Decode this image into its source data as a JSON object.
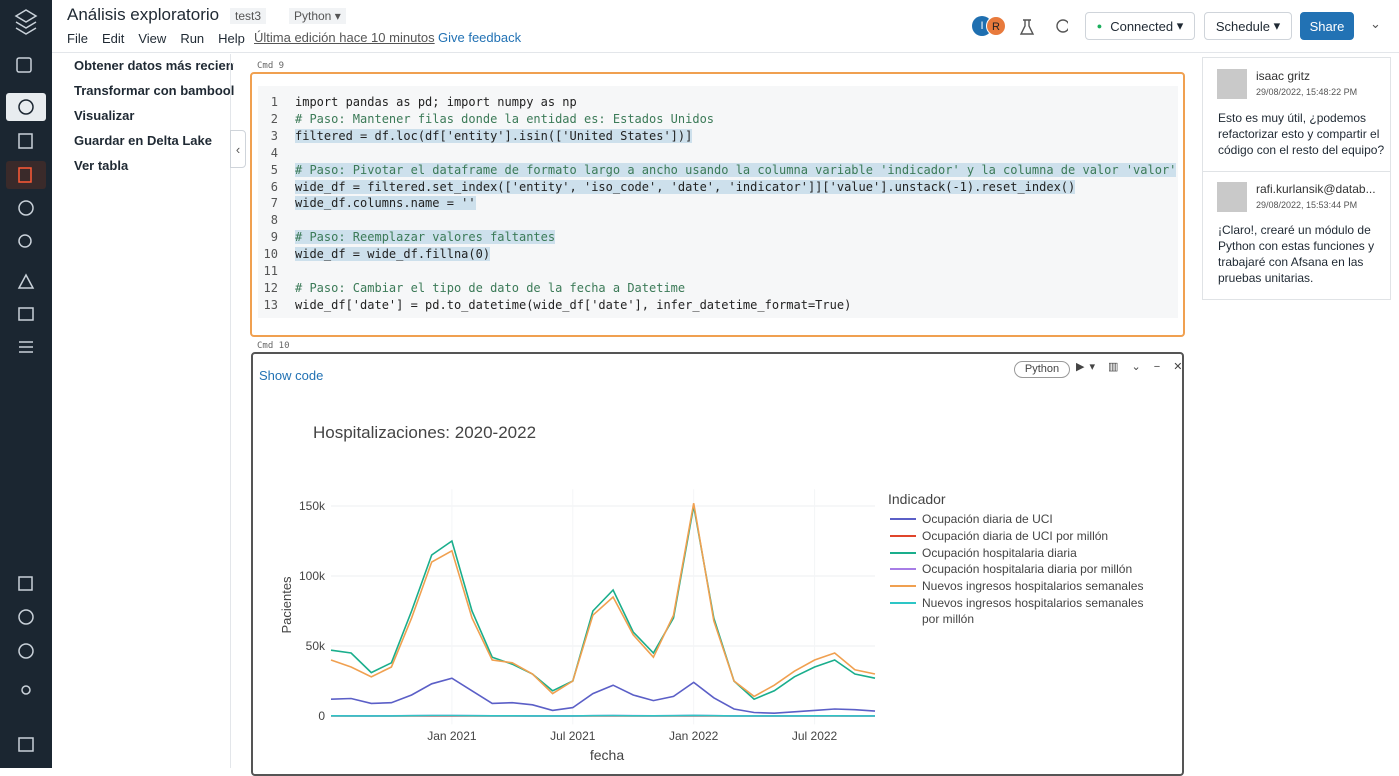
{
  "header": {
    "title": "Análisis exploratorio",
    "tag": "test3",
    "language": "Python",
    "menu": [
      "File",
      "Edit",
      "View",
      "Run",
      "Help"
    ],
    "last_edit": "Última edición hace 10 minutos",
    "feedback": "Give feedback",
    "avatars": [
      "I",
      "R"
    ],
    "connection": "Connected",
    "schedule": "Schedule",
    "share": "Share"
  },
  "outline": [
    "Obtener datos más reciente",
    "Transformar con bamboolib",
    "Visualizar",
    "Guardar en Delta Lake",
    "Ver tabla"
  ],
  "cells": [
    {
      "label": "Cmd 9",
      "lines": [
        {
          "n": 1,
          "text": "import pandas as pd; import numpy as np"
        },
        {
          "n": 2,
          "text": "# Paso: Mantener filas donde la entidad es: Estados Unidos"
        },
        {
          "n": 3,
          "text": "filtered = df.loc(df['entity'].isin(['United States'])]"
        },
        {
          "n": 4
        },
        {
          "n": 5,
          "text": "# Paso: Pivotar el dataframe de formato largo a ancho usando la columna variable 'indicador' y la columna de valor 'valor'"
        },
        {
          "n": 6,
          "text": "wide_df = filtered.set_index(['entity', 'iso_code', 'date', 'indicator']]['value'].unstack(-1).reset_index()"
        },
        {
          "n": 7,
          "text": "wide_df.columns.name = ''"
        },
        {
          "n": 8
        },
        {
          "n": 9,
          "text": "# Paso: Reemplazar valores faltantes"
        },
        {
          "n": 10,
          "text": "wide_df = wide_df.fillna(0)"
        },
        {
          "n": 11
        },
        {
          "n": 12,
          "text": "# Paso: Cambiar el tipo de dato de la fecha a Datetime"
        },
        {
          "n": 13,
          "text": "wide_df['date'] = pd.to_datetime(wide_df['date'], infer_datetime_format=True)"
        }
      ]
    },
    {
      "label": "Cmd 10",
      "show_code": "Show code",
      "language": "Python"
    }
  ],
  "comments": [
    {
      "author": "isaac gritz",
      "date": "29/08/2022, 15:48:22 PM",
      "text": "Esto es muy útil, ¿podemos refactorizar esto y compartir el código con el resto del equipo?"
    },
    {
      "author": "rafi.kurlansik@datab...",
      "date": "29/08/2022, 15:53:44 PM",
      "text": "¡Claro!, crearé un módulo de Python con estas funciones y trabajaré con Afsana en las pruebas unitarias."
    }
  ],
  "chart_data": {
    "type": "line",
    "title": "Hospitalizaciones: 2020-2022",
    "x_label": "fecha",
    "y_label": "Pacientes",
    "legend_title": "Indicador",
    "legend": "right",
    "grid": true,
    "x": [
      "2020-07",
      "2020-08",
      "2020-09",
      "2020-10",
      "2020-11",
      "2020-12",
      "2021-01",
      "2021-02",
      "2021-03",
      "2021-04",
      "2021-05",
      "2021-06",
      "2021-07",
      "2021-08",
      "2021-09",
      "2021-10",
      "2021-11",
      "2021-12",
      "2022-01",
      "2022-02",
      "2022-03",
      "2022-04",
      "2022-05",
      "2022-06",
      "2022-07",
      "2022-08",
      "2022-09",
      "2022-10"
    ],
    "xlim": [
      "2020-07",
      "2022-10"
    ],
    "xticks": [
      {
        "value": "2021-01",
        "label": "Jan 2021"
      },
      {
        "value": "2021-07",
        "label": "Jul 2021"
      },
      {
        "value": "2022-01",
        "label": "Jan 2022"
      },
      {
        "value": "2022-07",
        "label": "Jul 2022"
      }
    ],
    "ylim": [
      -6000,
      162000
    ],
    "yticks": [
      0,
      {
        "value": 50000,
        "label": "50k"
      },
      {
        "value": 100000,
        "label": "100k"
      },
      {
        "value": 150000,
        "label": "150k"
      }
    ],
    "series": [
      {
        "name": "Ocupación diaria de UCI",
        "color": "#5b5fc7",
        "values": [
          12000,
          12500,
          9000,
          9500,
          15000,
          23000,
          27000,
          18000,
          9000,
          9500,
          8000,
          4000,
          6000,
          16000,
          22000,
          15000,
          11000,
          14000,
          24000,
          13000,
          5000,
          2500,
          2000,
          3000,
          4000,
          5000,
          4500,
          3500
        ]
      },
      {
        "name": "Ocupación diaria de UCI por millón",
        "color": "#e0452b",
        "values": [
          36,
          38,
          27,
          29,
          45,
          70,
          82,
          55,
          27,
          29,
          24,
          12,
          18,
          48,
          67,
          45,
          33,
          42,
          73,
          39,
          15,
          8,
          6,
          9,
          12,
          15,
          14,
          11
        ]
      },
      {
        "name": "Ocupación hospitalaria diaria",
        "color": "#1aae8c",
        "values": [
          47000,
          45000,
          31000,
          38000,
          75000,
          115000,
          125000,
          75000,
          42000,
          37000,
          30000,
          18000,
          25000,
          75000,
          90000,
          60000,
          45000,
          70000,
          150000,
          70000,
          25000,
          12000,
          18000,
          28000,
          35000,
          40000,
          30000,
          27000
        ]
      },
      {
        "name": "Ocupación hospitalaria diaria por millón",
        "color": "#a77de6",
        "values": [
          142,
          136,
          94,
          115,
          227,
          348,
          379,
          227,
          127,
          112,
          91,
          55,
          76,
          227,
          273,
          182,
          136,
          212,
          455,
          212,
          76,
          36,
          55,
          85,
          106,
          121,
          91,
          82
        ]
      },
      {
        "name": "Nuevos ingresos hospitalarios semanales",
        "color": "#f0a050",
        "values": [
          40000,
          35000,
          28000,
          35000,
          70000,
          110000,
          118000,
          70000,
          40000,
          38000,
          30000,
          16000,
          25000,
          72000,
          85000,
          58000,
          42000,
          72000,
          152000,
          68000,
          25000,
          14000,
          22000,
          32000,
          40000,
          45000,
          33000,
          30000
        ]
      },
      {
        "name": "Nuevos ingresos hospitalarios semanales por millón",
        "color": "#2dc6c6",
        "values": [
          121,
          106,
          85,
          106,
          212,
          333,
          358,
          212,
          121,
          115,
          91,
          48,
          76,
          218,
          258,
          176,
          127,
          218,
          461,
          206,
          76,
          42,
          67,
          97,
          121,
          136,
          100,
          91
        ]
      }
    ]
  }
}
